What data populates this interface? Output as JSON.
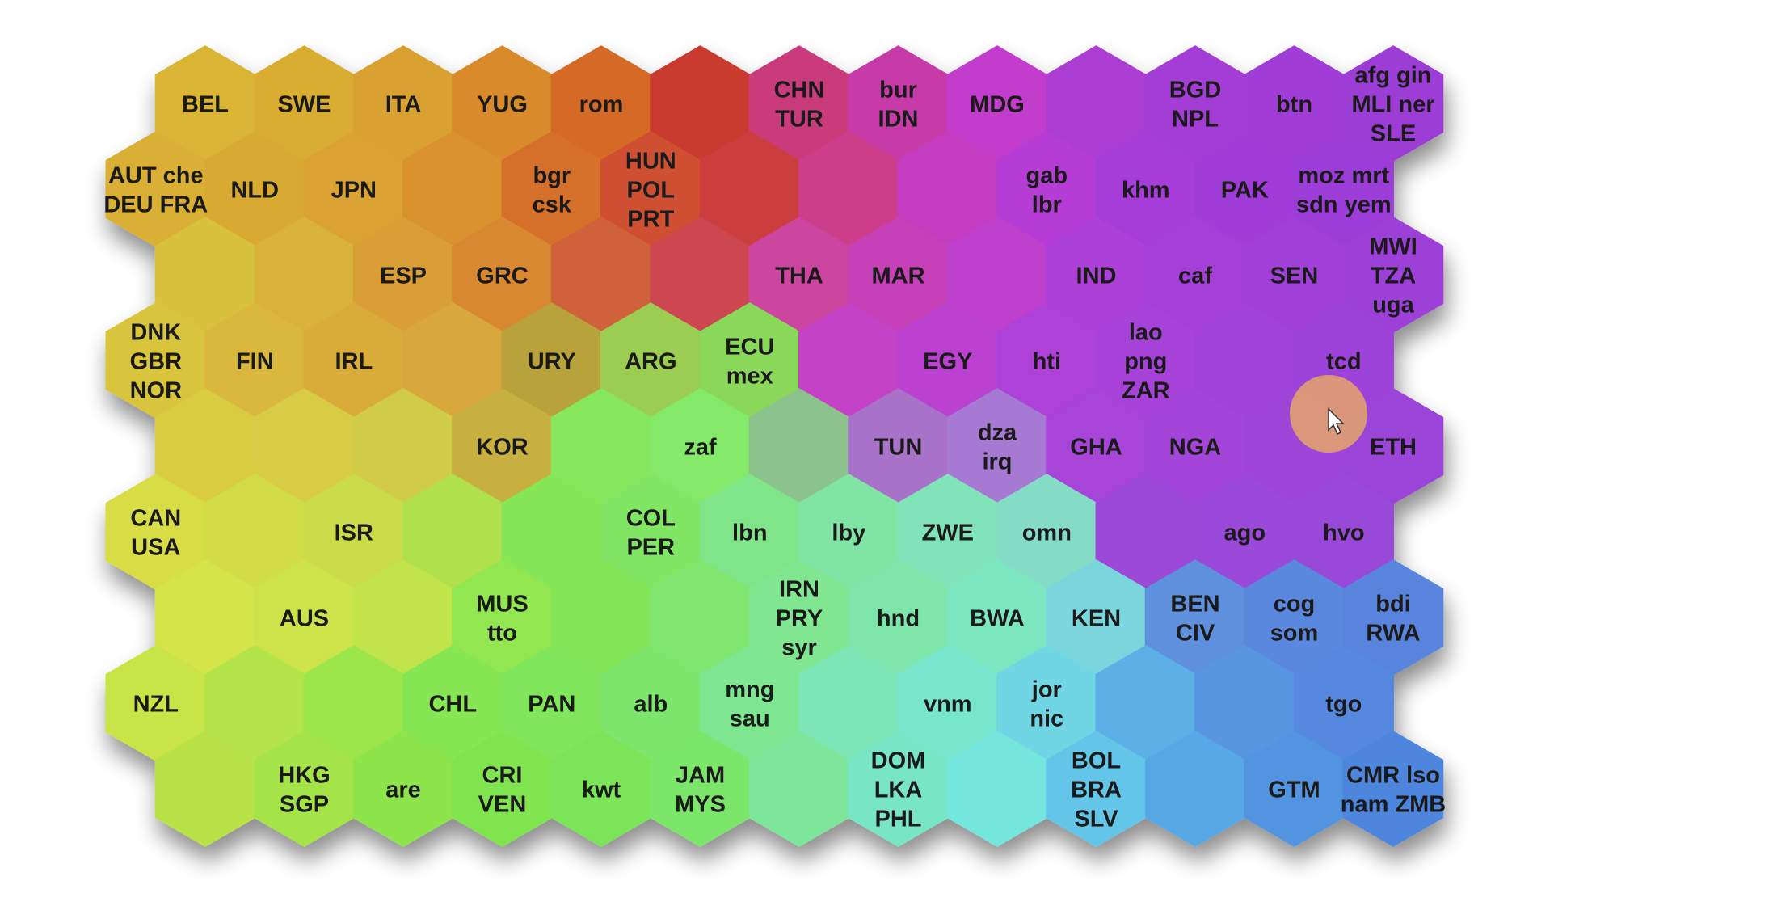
{
  "map": {
    "cols": 13,
    "rows": 9,
    "cells": [
      {
        "row": 0,
        "col": 0,
        "color": "#d9b435",
        "labels": [
          "BEL"
        ]
      },
      {
        "row": 0,
        "col": 1,
        "color": "#d9ad33",
        "labels": [
          "SWE"
        ]
      },
      {
        "row": 0,
        "col": 2,
        "color": "#d9a030",
        "labels": [
          "ITA"
        ]
      },
      {
        "row": 0,
        "col": 3,
        "color": "#d98a2c",
        "labels": [
          "YUG"
        ]
      },
      {
        "row": 0,
        "col": 4,
        "color": "#d46a26",
        "labels": [
          "rom"
        ]
      },
      {
        "row": 0,
        "col": 5,
        "color": "#c93a2e",
        "labels": []
      },
      {
        "row": 0,
        "col": 6,
        "color": "#c93a7a",
        "labels": [
          "CHN",
          "TUR"
        ]
      },
      {
        "row": 0,
        "col": 7,
        "color": "#c63aa8",
        "labels": [
          "bur",
          "IDN"
        ]
      },
      {
        "row": 0,
        "col": 8,
        "color": "#c23ecb",
        "labels": [
          "MDG"
        ]
      },
      {
        "row": 0,
        "col": 9,
        "color": "#ab3ed3",
        "labels": []
      },
      {
        "row": 0,
        "col": 10,
        "color": "#a43ed6",
        "labels": [
          "BGD",
          "NPL"
        ]
      },
      {
        "row": 0,
        "col": 11,
        "color": "#9f3ed6",
        "labels": [
          "btn"
        ]
      },
      {
        "row": 0,
        "col": 12,
        "color": "#9c3ed6",
        "labels": [
          "afg gin",
          "MLI ner",
          "SLE"
        ]
      },
      {
        "row": 1,
        "col": 0,
        "color": "#d9b035",
        "labels": [
          "AUT che",
          "DEU FRA"
        ]
      },
      {
        "row": 1,
        "col": 1,
        "color": "#d9aa33",
        "labels": [
          "NLD"
        ]
      },
      {
        "row": 1,
        "col": 2,
        "color": "#d9a232",
        "labels": [
          "JPN"
        ]
      },
      {
        "row": 1,
        "col": 3,
        "color": "#d9922e",
        "labels": []
      },
      {
        "row": 1,
        "col": 4,
        "color": "#d4702a",
        "labels": [
          "bgr",
          "csk"
        ]
      },
      {
        "row": 1,
        "col": 5,
        "color": "#cf5030",
        "labels": [
          "HUN",
          "POL",
          "PRT"
        ]
      },
      {
        "row": 1,
        "col": 6,
        "color": "#cc3e3e",
        "labels": []
      },
      {
        "row": 1,
        "col": 7,
        "color": "#cc3e8a",
        "labels": []
      },
      {
        "row": 1,
        "col": 8,
        "color": "#c43ec0",
        "labels": []
      },
      {
        "row": 1,
        "col": 9,
        "color": "#b53ed6",
        "labels": [
          "gab",
          "lbr"
        ]
      },
      {
        "row": 1,
        "col": 10,
        "color": "#a63ed8",
        "labels": [
          "khm"
        ]
      },
      {
        "row": 1,
        "col": 11,
        "color": "#a03ed8",
        "labels": [
          "PAK"
        ]
      },
      {
        "row": 1,
        "col": 12,
        "color": "#9c3ed8",
        "labels": [
          "moz mrt",
          "sdn yem"
        ]
      },
      {
        "row": 2,
        "col": 0,
        "color": "#d9c23a",
        "labels": []
      },
      {
        "row": 2,
        "col": 1,
        "color": "#d9b23a",
        "labels": []
      },
      {
        "row": 2,
        "col": 2,
        "color": "#d99e36",
        "labels": [
          "ESP"
        ]
      },
      {
        "row": 2,
        "col": 3,
        "color": "#d98833",
        "labels": [
          "GRC"
        ]
      },
      {
        "row": 2,
        "col": 4,
        "color": "#d0623a",
        "labels": []
      },
      {
        "row": 2,
        "col": 5,
        "color": "#cc4650",
        "labels": []
      },
      {
        "row": 2,
        "col": 6,
        "color": "#cc449e",
        "labels": [
          "THA"
        ]
      },
      {
        "row": 2,
        "col": 7,
        "color": "#c640b8",
        "labels": [
          "MAR"
        ]
      },
      {
        "row": 2,
        "col": 8,
        "color": "#bf40cc",
        "labels": []
      },
      {
        "row": 2,
        "col": 9,
        "color": "#ad40d6",
        "labels": [
          "IND"
        ]
      },
      {
        "row": 2,
        "col": 10,
        "color": "#a440d8",
        "labels": [
          "caf"
        ]
      },
      {
        "row": 2,
        "col": 11,
        "color": "#a040d8",
        "labels": [
          "SEN"
        ]
      },
      {
        "row": 2,
        "col": 12,
        "color": "#9c40d8",
        "labels": [
          "MWI",
          "TZA",
          "uga"
        ]
      },
      {
        "row": 3,
        "col": 0,
        "color": "#d9c43c",
        "labels": [
          "DNK",
          "GBR",
          "NOR"
        ]
      },
      {
        "row": 3,
        "col": 1,
        "color": "#d9b83c",
        "labels": [
          "FIN"
        ]
      },
      {
        "row": 3,
        "col": 2,
        "color": "#d9ab3a",
        "labels": [
          "IRL"
        ]
      },
      {
        "row": 3,
        "col": 3,
        "color": "#d9a83c",
        "labels": []
      },
      {
        "row": 3,
        "col": 4,
        "color": "#b8a23a",
        "labels": [
          "URY"
        ]
      },
      {
        "row": 3,
        "col": 5,
        "color": "#9ccd52",
        "labels": [
          "ARG"
        ]
      },
      {
        "row": 3,
        "col": 6,
        "color": "#8ad85a",
        "labels": [
          "ECU",
          "mex"
        ]
      },
      {
        "row": 3,
        "col": 7,
        "color": "#c442c6",
        "labels": []
      },
      {
        "row": 3,
        "col": 8,
        "color": "#bb42d0",
        "labels": [
          "EGY"
        ]
      },
      {
        "row": 3,
        "col": 9,
        "color": "#ae42d8",
        "labels": [
          "hti"
        ]
      },
      {
        "row": 3,
        "col": 10,
        "color": "#a642d8",
        "labels": [
          "lao",
          "png",
          "ZAR"
        ]
      },
      {
        "row": 3,
        "col": 11,
        "color": "#a142d8",
        "labels": []
      },
      {
        "row": 3,
        "col": 12,
        "color": "#9c42d8",
        "labels": [
          "tcd"
        ]
      },
      {
        "row": 4,
        "col": 0,
        "color": "#d9cc40",
        "labels": []
      },
      {
        "row": 4,
        "col": 1,
        "color": "#d8cc44",
        "labels": []
      },
      {
        "row": 4,
        "col": 2,
        "color": "#d0cc46",
        "labels": []
      },
      {
        "row": 4,
        "col": 3,
        "color": "#c8b040",
        "labels": [
          "KOR"
        ]
      },
      {
        "row": 4,
        "col": 4,
        "color": "#86e65c",
        "labels": []
      },
      {
        "row": 4,
        "col": 5,
        "color": "#84e868",
        "labels": [
          "zaf"
        ]
      },
      {
        "row": 4,
        "col": 6,
        "color": "#8cc28c",
        "labels": []
      },
      {
        "row": 4,
        "col": 7,
        "color": "#a872c8",
        "labels": [
          "TUN"
        ]
      },
      {
        "row": 4,
        "col": 8,
        "color": "#a67ad2",
        "labels": [
          "dza",
          "irq"
        ]
      },
      {
        "row": 4,
        "col": 9,
        "color": "#a644d8",
        "labels": [
          "GHA"
        ]
      },
      {
        "row": 4,
        "col": 10,
        "color": "#a244d8",
        "labels": [
          "NGA"
        ]
      },
      {
        "row": 4,
        "col": 11,
        "color": "#9e44d8",
        "labels": []
      },
      {
        "row": 4,
        "col": 12,
        "color": "#9a44d8",
        "labels": [
          "ETH"
        ]
      },
      {
        "row": 5,
        "col": 0,
        "color": "#d8dc44",
        "labels": [
          "CAN",
          "USA"
        ]
      },
      {
        "row": 5,
        "col": 1,
        "color": "#d2dc46",
        "labels": []
      },
      {
        "row": 5,
        "col": 2,
        "color": "#cadc48",
        "labels": [
          "ISR"
        ]
      },
      {
        "row": 5,
        "col": 3,
        "color": "#b0e04c",
        "labels": []
      },
      {
        "row": 5,
        "col": 4,
        "color": "#86e658",
        "labels": []
      },
      {
        "row": 5,
        "col": 5,
        "color": "#80e664",
        "labels": [
          "COL",
          "PER"
        ]
      },
      {
        "row": 5,
        "col": 6,
        "color": "#80e488",
        "labels": [
          "lbn"
        ]
      },
      {
        "row": 5,
        "col": 7,
        "color": "#80e4a4",
        "labels": [
          "lby"
        ]
      },
      {
        "row": 5,
        "col": 8,
        "color": "#80e4b8",
        "labels": [
          "ZWE"
        ]
      },
      {
        "row": 5,
        "col": 9,
        "color": "#84dcc6",
        "labels": [
          "omn"
        ]
      },
      {
        "row": 5,
        "col": 10,
        "color": "#9c48d8",
        "labels": []
      },
      {
        "row": 5,
        "col": 11,
        "color": "#9a48d8",
        "labels": [
          "ago"
        ]
      },
      {
        "row": 5,
        "col": 12,
        "color": "#9848d8",
        "labels": [
          "hvo"
        ]
      },
      {
        "row": 6,
        "col": 0,
        "color": "#d4e448",
        "labels": []
      },
      {
        "row": 6,
        "col": 1,
        "color": "#cce448",
        "labels": [
          "AUS"
        ]
      },
      {
        "row": 6,
        "col": 2,
        "color": "#c0e44a",
        "labels": []
      },
      {
        "row": 6,
        "col": 3,
        "color": "#92e650",
        "labels": [
          "MUS",
          "tto"
        ]
      },
      {
        "row": 6,
        "col": 4,
        "color": "#82e658",
        "labels": []
      },
      {
        "row": 6,
        "col": 5,
        "color": "#80e670",
        "labels": []
      },
      {
        "row": 6,
        "col": 6,
        "color": "#80e690",
        "labels": [
          "IRN",
          "PRY",
          "syr"
        ]
      },
      {
        "row": 6,
        "col": 7,
        "color": "#7ee6aa",
        "labels": [
          "hnd"
        ]
      },
      {
        "row": 6,
        "col": 8,
        "color": "#7ce6c0",
        "labels": [
          "BWA"
        ]
      },
      {
        "row": 6,
        "col": 9,
        "color": "#7ad6dc",
        "labels": [
          "KEN"
        ]
      },
      {
        "row": 6,
        "col": 10,
        "color": "#5e90de",
        "labels": [
          "BEN",
          "CIV"
        ]
      },
      {
        "row": 6,
        "col": 11,
        "color": "#5a88de",
        "labels": [
          "cog",
          "som"
        ]
      },
      {
        "row": 6,
        "col": 12,
        "color": "#5884de",
        "labels": [
          "bdi",
          "RWA"
        ]
      },
      {
        "row": 7,
        "col": 0,
        "color": "#c8e446",
        "labels": [
          "NZL"
        ]
      },
      {
        "row": 7,
        "col": 1,
        "color": "#b4e448",
        "labels": []
      },
      {
        "row": 7,
        "col": 2,
        "color": "#9ce64c",
        "labels": []
      },
      {
        "row": 7,
        "col": 3,
        "color": "#86e652",
        "labels": [
          "CHL"
        ]
      },
      {
        "row": 7,
        "col": 4,
        "color": "#80e65c",
        "labels": [
          "PAN"
        ]
      },
      {
        "row": 7,
        "col": 5,
        "color": "#7ee66c",
        "labels": [
          "alb"
        ]
      },
      {
        "row": 7,
        "col": 6,
        "color": "#7ee690",
        "labels": [
          "mng",
          "sau"
        ]
      },
      {
        "row": 7,
        "col": 7,
        "color": "#7ce6b6",
        "labels": []
      },
      {
        "row": 7,
        "col": 8,
        "color": "#78e6cc",
        "labels": [
          "vnm"
        ]
      },
      {
        "row": 7,
        "col": 9,
        "color": "#70d6e4",
        "labels": [
          "jor",
          "nic"
        ]
      },
      {
        "row": 7,
        "col": 10,
        "color": "#5cb0e6",
        "labels": []
      },
      {
        "row": 7,
        "col": 11,
        "color": "#5896e2",
        "labels": []
      },
      {
        "row": 7,
        "col": 12,
        "color": "#5488de",
        "labels": [
          "tgo"
        ]
      },
      {
        "row": 8,
        "col": 0,
        "color": "#b8e246",
        "labels": []
      },
      {
        "row": 8,
        "col": 1,
        "color": "#a4e448",
        "labels": [
          "HKG",
          "SGP"
        ]
      },
      {
        "row": 8,
        "col": 2,
        "color": "#8ee44c",
        "labels": [
          "are"
        ]
      },
      {
        "row": 8,
        "col": 3,
        "color": "#80e450",
        "labels": [
          "CRI",
          "VEN"
        ]
      },
      {
        "row": 8,
        "col": 4,
        "color": "#7ce458",
        "labels": [
          "kwt"
        ]
      },
      {
        "row": 8,
        "col": 5,
        "color": "#7ce66a",
        "labels": [
          "JAM",
          "MYS"
        ]
      },
      {
        "row": 8,
        "col": 6,
        "color": "#7ee69a",
        "labels": []
      },
      {
        "row": 8,
        "col": 7,
        "color": "#78e6c4",
        "labels": [
          "DOM",
          "LKA",
          "PHL"
        ]
      },
      {
        "row": 8,
        "col": 8,
        "color": "#74e6dc",
        "labels": []
      },
      {
        "row": 8,
        "col": 9,
        "color": "#64c6e8",
        "labels": [
          "BOL",
          "BRA",
          "SLV"
        ]
      },
      {
        "row": 8,
        "col": 10,
        "color": "#58a8e6",
        "labels": []
      },
      {
        "row": 8,
        "col": 11,
        "color": "#5294e0",
        "labels": [
          "GTM"
        ]
      },
      {
        "row": 8,
        "col": 12,
        "color": "#4e86dc",
        "labels": [
          "CMR lso",
          "nam ZMB"
        ]
      }
    ]
  },
  "cursor": {
    "highlight_color": "#e0a070",
    "pointer_color": "#ffffff"
  }
}
